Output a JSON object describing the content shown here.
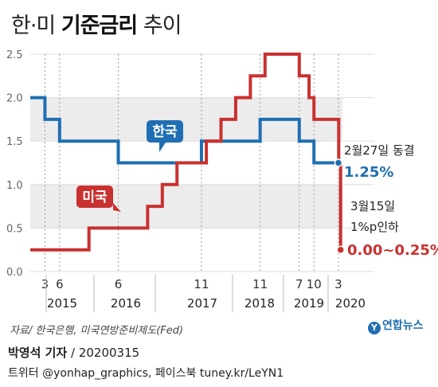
{
  "header": {
    "title_prefix": "한·미",
    "title_main": "기준금리",
    "title_suffix": "추이"
  },
  "chart_data": {
    "type": "line",
    "y_ticks": [
      "0.0",
      "0.5",
      "1.0",
      "1.5",
      "2.0",
      "2.5"
    ],
    "ylim": [
      0,
      2.5
    ],
    "month_ticks": [
      "3",
      "6",
      "6",
      "11",
      "11",
      "7",
      "10",
      "3"
    ],
    "year_ticks": [
      "2015",
      "2016",
      "2017",
      "2018",
      "2019",
      "2020"
    ],
    "grid": "horizontal bands",
    "series": [
      {
        "name": "한국",
        "color": "#1f6fb2",
        "x": [
          "2014-12",
          "2015-03",
          "2015-06",
          "2016-06",
          "2017-11",
          "2018-11",
          "2019-07",
          "2019-10",
          "2020-03"
        ],
        "values": [
          2.0,
          1.75,
          1.5,
          1.25,
          1.5,
          1.75,
          1.5,
          1.25,
          1.25
        ]
      },
      {
        "name": "미국",
        "color": "#c8312f",
        "x": [
          "2014-12",
          "2015-12",
          "2016-12",
          "2017-03",
          "2017-06",
          "2017-12",
          "2018-03",
          "2018-06",
          "2018-09",
          "2018-12",
          "2019-07",
          "2019-09",
          "2019-10",
          "2020-03-03",
          "2020-03-15"
        ],
        "values": [
          0.25,
          0.5,
          0.75,
          1.0,
          1.25,
          1.5,
          1.75,
          2.0,
          2.25,
          2.5,
          2.25,
          2.0,
          1.75,
          1.25,
          0.25
        ]
      }
    ],
    "annotations": {
      "kr_note": "2월27일 동결",
      "kr_value": "1.25%",
      "us_note_1": "3월15일",
      "us_note_2": "1%p인하",
      "us_value": "0.00~0.25%"
    }
  },
  "footer": {
    "source": "자료/ 한국은행, 미국연방준비제도(Fed)",
    "logo": "연합뉴스",
    "reporter": "박영석 기자",
    "date_text": " / 20200315",
    "social": "트위터 @yonhap_graphics, 페이스북 tuney.kr/LeYN1"
  }
}
